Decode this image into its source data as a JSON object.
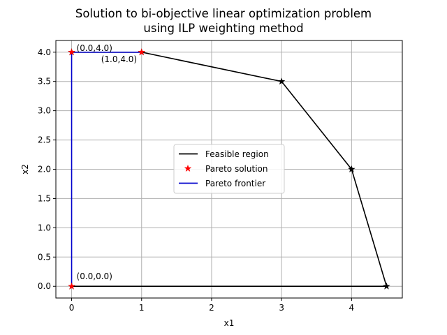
{
  "chart_data": {
    "type": "line",
    "title": [
      "Solution to bi-objective linear optimization problem",
      "using ILP weighting method"
    ],
    "xlabel": "x1",
    "ylabel": "x2",
    "xlim": [
      -0.225,
      4.725
    ],
    "ylim": [
      -0.2,
      4.2
    ],
    "xticks": [
      0,
      1,
      2,
      3,
      4
    ],
    "yticks": [
      0.0,
      0.5,
      1.0,
      1.5,
      2.0,
      2.5,
      3.0,
      3.5,
      4.0
    ],
    "grid": true,
    "legend_position": "center",
    "series": [
      {
        "name": "Feasible region",
        "kind": "line",
        "color": "#000000",
        "marker": "star",
        "x": [
          0,
          1,
          3,
          4,
          4.5,
          0
        ],
        "y": [
          4,
          4,
          3.5,
          2,
          0,
          0
        ]
      },
      {
        "name": "Pareto solution",
        "kind": "points",
        "color": "#ff0000",
        "marker": "star",
        "x": [
          0,
          1,
          0
        ],
        "y": [
          4,
          4,
          0
        ]
      },
      {
        "name": "Pareto frontier",
        "kind": "line",
        "color": "#0000cc",
        "x": [
          0,
          0,
          1
        ],
        "y": [
          0,
          4,
          4
        ]
      }
    ],
    "annotations": [
      {
        "text": "(0.0,4.0)",
        "x": 0,
        "y": 4
      },
      {
        "text": "(1.0,4.0)",
        "x": 1,
        "y": 4
      },
      {
        "text": "(0.0,0.0)",
        "x": 0,
        "y": 0
      }
    ]
  }
}
